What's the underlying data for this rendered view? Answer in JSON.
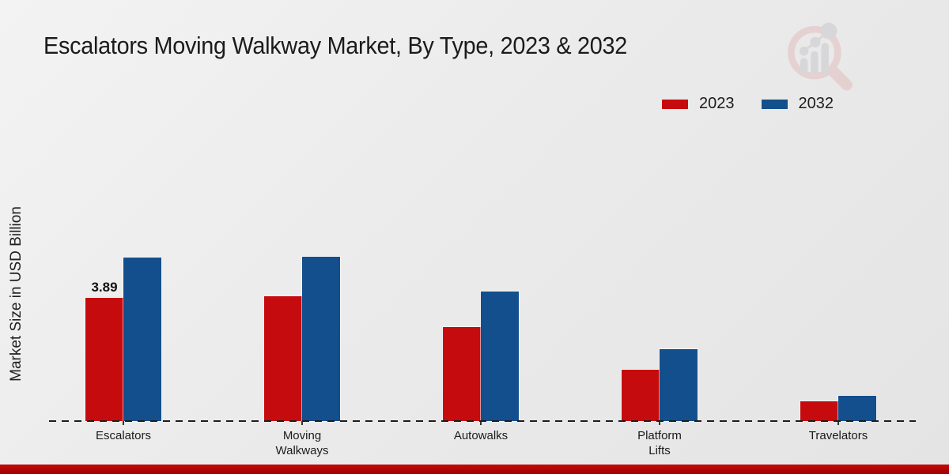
{
  "title": "Escalators Moving Walkway Market, By Type, 2023 & 2032",
  "colors": {
    "series_2023": "#c60b0e",
    "series_2032": "#134f8c",
    "bottom_strip": "#b30707",
    "baseline": "#1d1d1d"
  },
  "chart_data": {
    "type": "bar",
    "title": "Escalators Moving Walkway Market, By Type, 2023 & 2032",
    "xlabel": "",
    "ylabel": "Market Size in USD Billion",
    "categories": [
      "Escalators",
      "Moving Walkways",
      "Autowalks",
      "Platform Lifts",
      "Travelators"
    ],
    "category_lines": [
      [
        "Escalators"
      ],
      [
        "Moving",
        "Walkways"
      ],
      [
        "Autowalks"
      ],
      [
        "Platform",
        "Lifts"
      ],
      [
        "Travelators"
      ]
    ],
    "series": [
      {
        "name": "2023",
        "color": "#c60b0e",
        "values": [
          3.89,
          3.94,
          2.97,
          1.62,
          0.62
        ]
      },
      {
        "name": "2032",
        "color": "#134f8c",
        "values": [
          5.16,
          5.19,
          4.09,
          2.27,
          0.8
        ]
      }
    ],
    "bar_labels": [
      {
        "series_index": 0,
        "category_index": 0,
        "text": "3.89"
      }
    ],
    "ylim": [
      0,
      5.5
    ],
    "grid": false,
    "y_axis_visible": false,
    "x_axis_style": "dashed",
    "legend_position": "top-right"
  }
}
